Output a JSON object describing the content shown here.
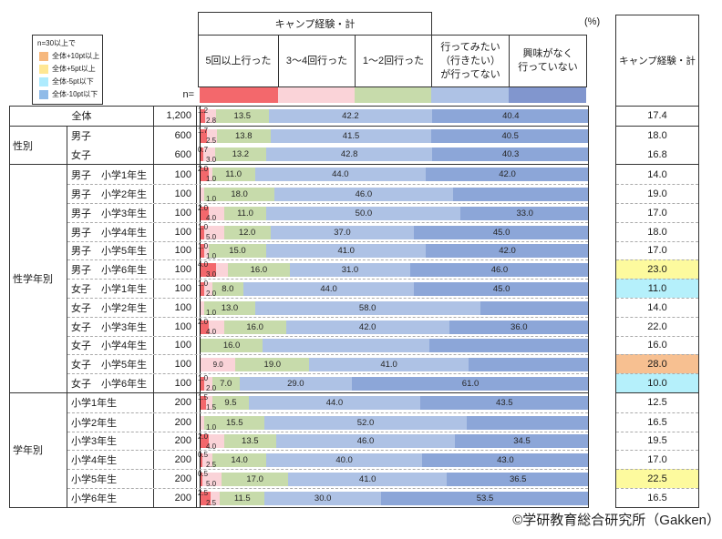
{
  "percent_label": "(%)",
  "n_header": "n=",
  "copyright": "©学研教育総合研究所（Gakken）",
  "legend": {
    "title": "n=30以上で",
    "items": [
      {
        "label": "全体+10pt以上",
        "color": "#F6B87E"
      },
      {
        "label": "全体+5pt以上",
        "color": "#FFE794"
      },
      {
        "label": "全体-5pt以下",
        "color": "#AEEBFE"
      },
      {
        "label": "全体-10pt以下",
        "color": "#90BBE8"
      }
    ]
  },
  "header": {
    "span_title": "キャンプ経験・計",
    "columns": [
      {
        "lines": [
          "5回以上行った"
        ]
      },
      {
        "lines": [
          "3〜4回行った"
        ]
      },
      {
        "lines": [
          "1〜2回行った"
        ]
      },
      {
        "lines": [
          "行ってみたい",
          "（行きたい）",
          "が行ってない"
        ]
      },
      {
        "lines": [
          "興味がなく",
          "行っていない"
        ]
      }
    ]
  },
  "right_column": {
    "title": "キャンプ経験・計"
  },
  "palette": {
    "bar_colors": [
      "#F3686C",
      "#FAD3D8",
      "#C7DBAB",
      "#AEC2E5",
      "#8CA6D8"
    ],
    "swatch_colors": [
      "#F3686C",
      "#FAD3D8",
      "#C7DBAB",
      "#AEC2E5",
      "#8196CE"
    ],
    "highlight_colors": {
      "yellow": "#FDFA9E",
      "cyan": "#B5F0FB",
      "orange": "#F7C091"
    }
  },
  "chart_data": {
    "type": "bar",
    "stacked": true,
    "orientation": "horizontal",
    "unit": "%",
    "xlim": [
      0,
      100
    ],
    "series_labels": [
      "5回以上行った",
      "3〜4回行った",
      "1〜2回行った",
      "行ってみたい（行きたい）が行ってない",
      "興味がなく行っていない"
    ],
    "total_label": "キャンプ経験・計",
    "groups": [
      {
        "name": "",
        "sep": "none",
        "rows": [
          {
            "label": "全体",
            "n": "1,200",
            "v": [
              1.2,
              2.8,
              13.5,
              42.2,
              40.4
            ],
            "l": [
              "1.2",
              "2.8",
              "13.5",
              "42.2",
              "40.4"
            ],
            "total": "17.4",
            "hl": ""
          }
        ]
      },
      {
        "name": "性別",
        "sep": "none",
        "rows": [
          {
            "label": "男子",
            "n": "600",
            "v": [
              1.7,
              2.5,
              13.8,
              41.5,
              40.5
            ],
            "l": [
              "1.7",
              "2.5",
              "13.8",
              "41.5",
              "40.5"
            ],
            "total": "18.0",
            "hl": ""
          },
          {
            "label": "女子",
            "n": "600",
            "v": [
              0.7,
              3.0,
              13.2,
              42.8,
              40.3
            ],
            "l": [
              "0.7",
              "3.0",
              "13.2",
              "42.8",
              "40.3"
            ],
            "total": "16.8",
            "hl": ""
          }
        ]
      },
      {
        "name": "性学年別",
        "sep": "dashed",
        "rows": [
          {
            "label": "男子　小学1年生",
            "n": "100",
            "v": [
              2,
              1,
              11,
              44,
              42
            ],
            "l": [
              "2.0",
              "1.0",
              "11.0",
              "44.0",
              "42.0"
            ],
            "total": "14.0",
            "hl": ""
          },
          {
            "label": "男子　小学2年生",
            "n": "100",
            "v": [
              0,
              1,
              18,
              46,
              35
            ],
            "l": [
              "",
              "1.0",
              "18.0",
              "46.0",
              ""
            ],
            "total": "19.0",
            "hl": ""
          },
          {
            "label": "男子　小学3年生",
            "n": "100",
            "v": [
              2,
              4,
              11,
              50,
              33
            ],
            "l": [
              "2.0",
              "4.0",
              "11.0",
              "50.0",
              "33.0"
            ],
            "total": "17.0",
            "hl": ""
          },
          {
            "label": "男子　小学4年生",
            "n": "100",
            "v": [
              1,
              5,
              12,
              37,
              45
            ],
            "l": [
              "1.0",
              "5.0",
              "12.0",
              "37.0",
              "45.0"
            ],
            "total": "18.0",
            "hl": ""
          },
          {
            "label": "男子　小学5年生",
            "n": "100",
            "v": [
              1,
              1,
              15,
              41,
              42
            ],
            "l": [
              "1.0",
              "1.0",
              "15.0",
              "41.0",
              "42.0"
            ],
            "total": "17.0",
            "hl": ""
          },
          {
            "label": "男子　小学6年生",
            "n": "100",
            "v": [
              4,
              3,
              16,
              31,
              46
            ],
            "l": [
              "4.0",
              "3.0",
              "16.0",
              "31.0",
              "46.0"
            ],
            "total": "23.0",
            "hl": "yellow"
          },
          {
            "label": "女子　小学1年生",
            "n": "100",
            "v": [
              1,
              2,
              8,
              44,
              45
            ],
            "l": [
              "1.0",
              "2.0",
              "8.0",
              "44.0",
              "45.0"
            ],
            "total": "11.0",
            "hl": "cyan"
          },
          {
            "label": "女子　小学2年生",
            "n": "100",
            "v": [
              0,
              1,
              13,
              58,
              28
            ],
            "l": [
              "",
              "1.0",
              "13.0",
              "58.0",
              ""
            ],
            "total": "14.0",
            "hl": ""
          },
          {
            "label": "女子　小学3年生",
            "n": "100",
            "v": [
              2,
              4,
              16,
              42,
              36
            ],
            "l": [
              "2.0",
              "4.0",
              "16.0",
              "42.0",
              "36.0"
            ],
            "total": "22.0",
            "hl": ""
          },
          {
            "label": "女子　小学4年生",
            "n": "100",
            "v": [
              0,
              0,
              16,
              43,
              41
            ],
            "l": [
              "",
              "",
              "16.0",
              "",
              ""
            ],
            "total": "16.0",
            "hl": ""
          },
          {
            "label": "女子　小学5年生",
            "n": "100",
            "v": [
              0,
              9,
              19,
              41,
              31
            ],
            "l": [
              "",
              "9.0",
              "19.0",
              "41.0",
              ""
            ],
            "total": "28.0",
            "hl": "orange"
          },
          {
            "label": "女子　小学6年生",
            "n": "100",
            "v": [
              1,
              2,
              7,
              29,
              61
            ],
            "l": [
              "1.0",
              "2.0",
              "7.0",
              "29.0",
              "61.0"
            ],
            "total": "10.0",
            "hl": "cyan"
          }
        ]
      },
      {
        "name": "学年別",
        "sep": "dashed",
        "rows": [
          {
            "label": "小学1年生",
            "n": "200",
            "v": [
              1.5,
              1.5,
              9.5,
              44,
              43.5
            ],
            "l": [
              "1.5",
              "1.5",
              "9.5",
              "44.0",
              "43.5"
            ],
            "total": "12.5",
            "hl": ""
          },
          {
            "label": "小学2年生",
            "n": "200",
            "v": [
              0,
              1,
              15.5,
              52,
              31.5
            ],
            "l": [
              "",
              "1.0",
              "15.5",
              "52.0",
              ""
            ],
            "total": "16.5",
            "hl": ""
          },
          {
            "label": "小学3年生",
            "n": "200",
            "v": [
              2,
              4,
              13.5,
              46,
              34.5
            ],
            "l": [
              "2.0",
              "4.0",
              "13.5",
              "46.0",
              "34.5"
            ],
            "total": "19.5",
            "hl": ""
          },
          {
            "label": "小学4年生",
            "n": "200",
            "v": [
              0.5,
              2.5,
              14,
              40,
              43
            ],
            "l": [
              "0.5",
              "2.5",
              "14.0",
              "40.0",
              "43.0"
            ],
            "total": "17.0",
            "hl": ""
          },
          {
            "label": "小学5年生",
            "n": "200",
            "v": [
              0.5,
              5,
              17,
              41,
              36.5
            ],
            "l": [
              "0.5",
              "5.0",
              "17.0",
              "41.0",
              "36.5"
            ],
            "total": "22.5",
            "hl": "yellow"
          },
          {
            "label": "小学6年生",
            "n": "200",
            "v": [
              2.5,
              2.5,
              11.5,
              30,
              53.5
            ],
            "l": [
              "2.5",
              "2.5",
              "11.5",
              "30.0",
              "53.5"
            ],
            "total": "16.5",
            "hl": ""
          }
        ]
      }
    ]
  }
}
